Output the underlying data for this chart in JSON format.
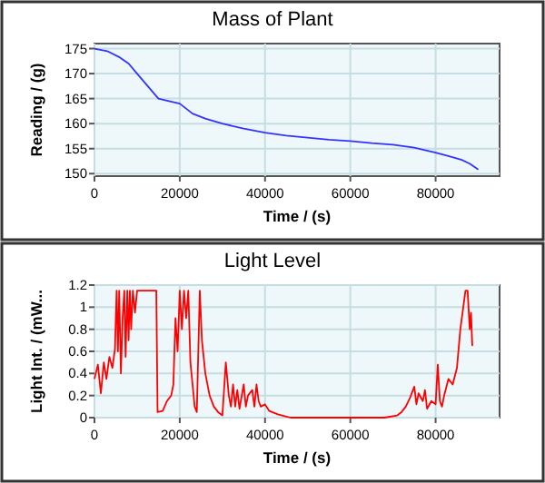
{
  "chart_data": [
    {
      "type": "line",
      "title": "Mass of Plant",
      "xlabel": "Time / (s)",
      "ylabel": "Reading / (g)",
      "xlim": [
        0,
        95000
      ],
      "ylim": [
        149.5,
        176
      ],
      "xticks": [
        0,
        20000,
        40000,
        60000,
        80000
      ],
      "yticks": [
        150,
        155,
        160,
        165,
        170,
        175
      ],
      "grid": true,
      "series": [
        {
          "color": "#3333ff",
          "x": [
            0,
            3000,
            6000,
            8000,
            10000,
            12000,
            13500,
            15000,
            17000,
            20000,
            21500,
            23000,
            26000,
            30000,
            35000,
            40000,
            45000,
            50000,
            55000,
            60000,
            65000,
            70000,
            75000,
            80000,
            83000,
            86000,
            88000,
            90000
          ],
          "values": [
            175,
            174.5,
            173.2,
            172,
            170,
            168,
            166.5,
            165,
            164.6,
            164,
            163,
            162,
            161,
            160,
            159,
            158.2,
            157.6,
            157.2,
            156.8,
            156.5,
            156.1,
            155.8,
            155.2,
            154.2,
            153.5,
            152.8,
            152,
            150.8
          ]
        }
      ]
    },
    {
      "type": "line",
      "title": "Light Level",
      "xlabel": "Time / (s)",
      "ylabel": "Light Int. / (mW...",
      "xlim": [
        0,
        95000
      ],
      "ylim": [
        0,
        1.2
      ],
      "xticks": [
        0,
        20000,
        40000,
        60000,
        80000
      ],
      "yticks": [
        0,
        0.2,
        0.4,
        0.6,
        0.8,
        1,
        1.2
      ],
      "grid": true,
      "series": [
        {
          "color": "#ff0000",
          "x": [
            0,
            800,
            1500,
            2200,
            2800,
            3500,
            4200,
            4800,
            5200,
            5500,
            5800,
            6200,
            6600,
            7000,
            7300,
            7700,
            8000,
            8300,
            8600,
            9000,
            9500,
            10000,
            14500,
            14800,
            16000,
            17000,
            18000,
            18500,
            19000,
            19500,
            20000,
            20500,
            21000,
            21500,
            22000,
            22500,
            23000,
            23500,
            24000,
            24700,
            25200,
            26000,
            27000,
            28000,
            29000,
            30000,
            30800,
            31500,
            32000,
            32500,
            33000,
            33500,
            34000,
            35000,
            35500,
            36000,
            37000,
            37500,
            38000,
            38500,
            39000,
            40000,
            41000,
            43000,
            45000,
            46000,
            68000,
            71000,
            72000,
            73000,
            74000,
            75000,
            75500,
            76000,
            77000,
            77500,
            78000,
            79000,
            80000,
            80500,
            81000,
            81500,
            82000,
            83000,
            84000,
            85000,
            85800,
            87000,
            87500,
            88000,
            88300,
            88600
          ],
          "values": [
            0.35,
            0.48,
            0.22,
            0.5,
            0.35,
            0.55,
            0.45,
            0.62,
            1.15,
            0.6,
            1.15,
            0.4,
            0.9,
            1.15,
            0.55,
            1.15,
            0.7,
            1.15,
            0.8,
            1.15,
            0.95,
            1.15,
            1.15,
            0.05,
            0.06,
            0.15,
            0.2,
            0.3,
            0.9,
            0.6,
            1.15,
            0.8,
            1.15,
            0.9,
            1.15,
            0.5,
            0.3,
            0.1,
            0.05,
            1.15,
            0.7,
            0.4,
            0.2,
            0.1,
            0.05,
            0.02,
            0.5,
            0.2,
            0.1,
            0.3,
            0.1,
            0.25,
            0.08,
            0.3,
            0.1,
            0.2,
            0.25,
            0.1,
            0.3,
            0.15,
            0.1,
            0.12,
            0.06,
            0.03,
            0.01,
            0,
            0,
            0.02,
            0.05,
            0.1,
            0.18,
            0.28,
            0.12,
            0.22,
            0.15,
            0.25,
            0.08,
            0.15,
            0.12,
            0.48,
            0.15,
            0.1,
            0.2,
            0.35,
            0.3,
            0.45,
            0.8,
            1.15,
            1.15,
            0.8,
            0.95,
            0.65
          ]
        }
      ]
    }
  ]
}
